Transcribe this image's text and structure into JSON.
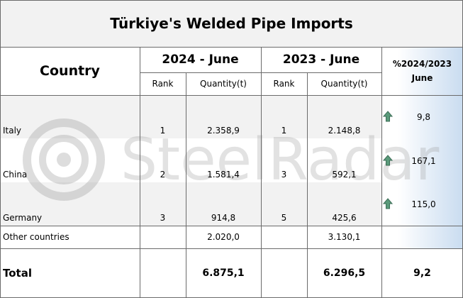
{
  "title": "Türkiye's Welded Pipe Imports",
  "header": {
    "country": "Country",
    "period1": "2024 - June",
    "period2": "2023 - June",
    "change": "%2024/2023",
    "change_sub": "June",
    "rank1": "Rank",
    "qty1": "Quantity(t)",
    "rank2": "Rank",
    "qty2": "Quantity(t)"
  },
  "rows": [
    [
      "Italy",
      "1",
      "2.358,9",
      "1",
      "2.148,8",
      "9,8"
    ],
    [
      "China",
      "2",
      "1.581,4",
      "3",
      "592,1",
      "167,1"
    ],
    [
      "Germany",
      "3",
      "914,8",
      "5",
      "425,6",
      "115,0"
    ]
  ],
  "other": [
    "Other countries",
    "2.020,0",
    "3.130,1"
  ],
  "total": [
    "Total",
    "6.875,1",
    "6.296,5",
    "9,2"
  ],
  "watermark": "SteelRadar"
}
